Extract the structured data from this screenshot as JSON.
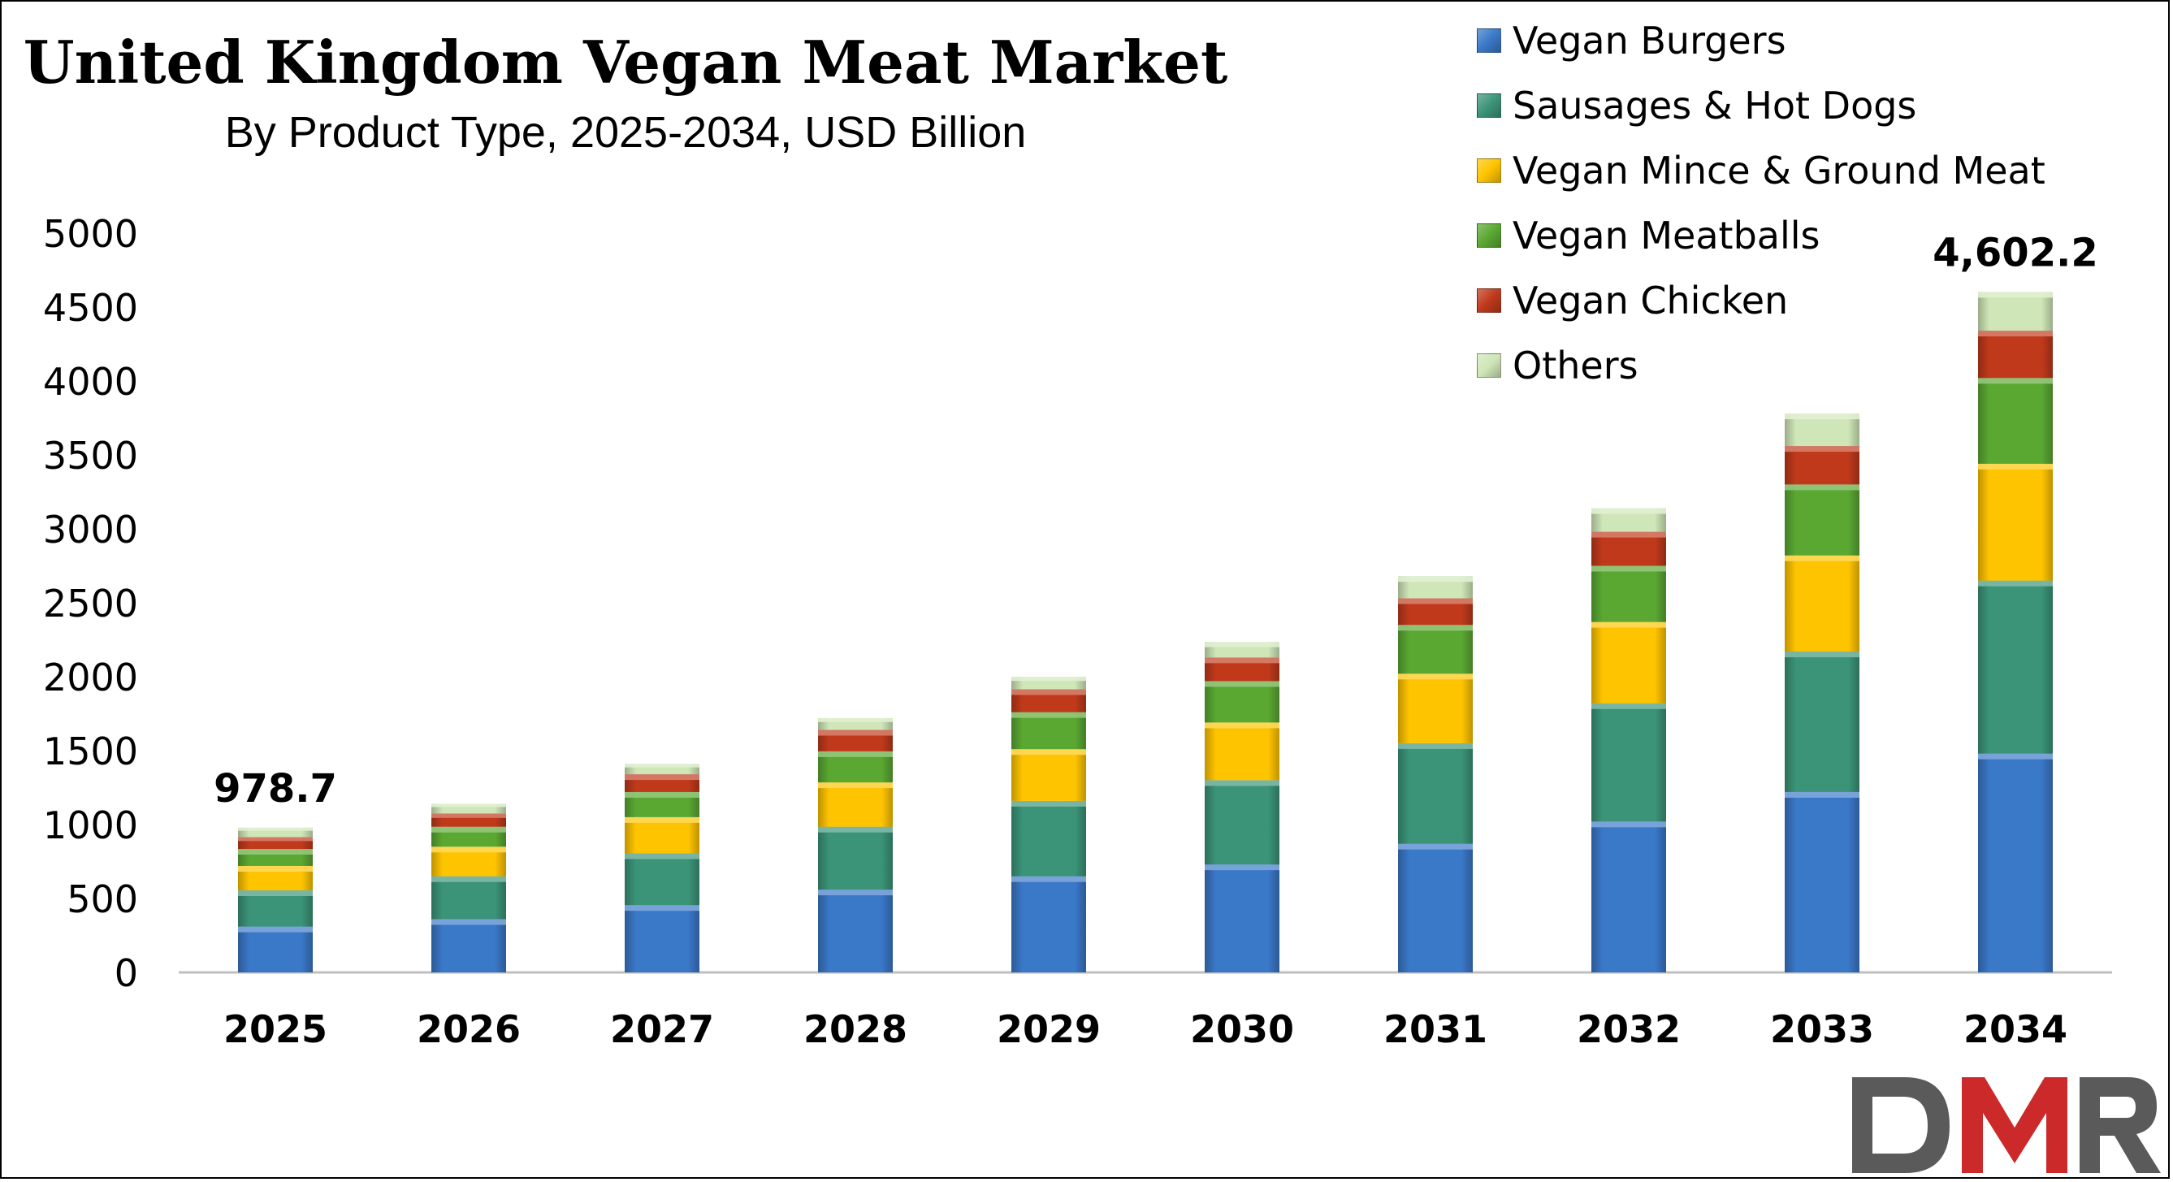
{
  "title": "United Kingdom Vegan Meat Market",
  "subtitle": "By Product Type, 2025-2034, USD Billion",
  "logo_text": "DMR",
  "chart_data": {
    "type": "bar",
    "stacked": true,
    "title": "United Kingdom Vegan Meat Market",
    "subtitle": "By Product Type, 2025-2034, USD Billion",
    "xlabel": "",
    "ylabel": "",
    "ylim": [
      0,
      5000
    ],
    "yticks": [
      0,
      500,
      1000,
      1500,
      2000,
      2500,
      3000,
      3500,
      4000,
      4500,
      5000
    ],
    "grid": false,
    "legend_position": "top-right",
    "categories": [
      "2025",
      "2026",
      "2027",
      "2028",
      "2029",
      "2030",
      "2031",
      "2032",
      "2033",
      "2034"
    ],
    "series": [
      {
        "name": "Vegan Burgers",
        "color": "#3a78c8",
        "values": [
          310,
          360,
          455,
          560,
          650,
          730,
          870,
          1020,
          1220,
          1480
        ]
      },
      {
        "name": "Sausages & Hot Dogs",
        "color": "#3b9478",
        "values": [
          245,
          290,
          350,
          425,
          510,
          570,
          680,
          800,
          950,
          1170
        ]
      },
      {
        "name": "Vegan Mince & Ground Meat",
        "color": "#ffc400",
        "values": [
          165,
          200,
          245,
          300,
          350,
          390,
          470,
          550,
          650,
          790
        ]
      },
      {
        "name": "Vegan Meatballs",
        "color": "#5aa832",
        "values": [
          115,
          135,
          170,
          210,
          250,
          280,
          330,
          380,
          480,
          580
        ]
      },
      {
        "name": "Vegan Chicken",
        "color": "#c0391b",
        "values": [
          80,
          90,
          120,
          145,
          155,
          160,
          180,
          230,
          260,
          320
        ]
      },
      {
        "name": "Others",
        "color": "#cfe6b8",
        "values": [
          63.7,
          65,
          70,
          80,
          85,
          105,
          150,
          160,
          220,
          262.2
        ]
      }
    ],
    "data_labels": [
      {
        "category": "2025",
        "text": "978.7"
      },
      {
        "category": "2034",
        "text": "4,602.2"
      }
    ]
  }
}
